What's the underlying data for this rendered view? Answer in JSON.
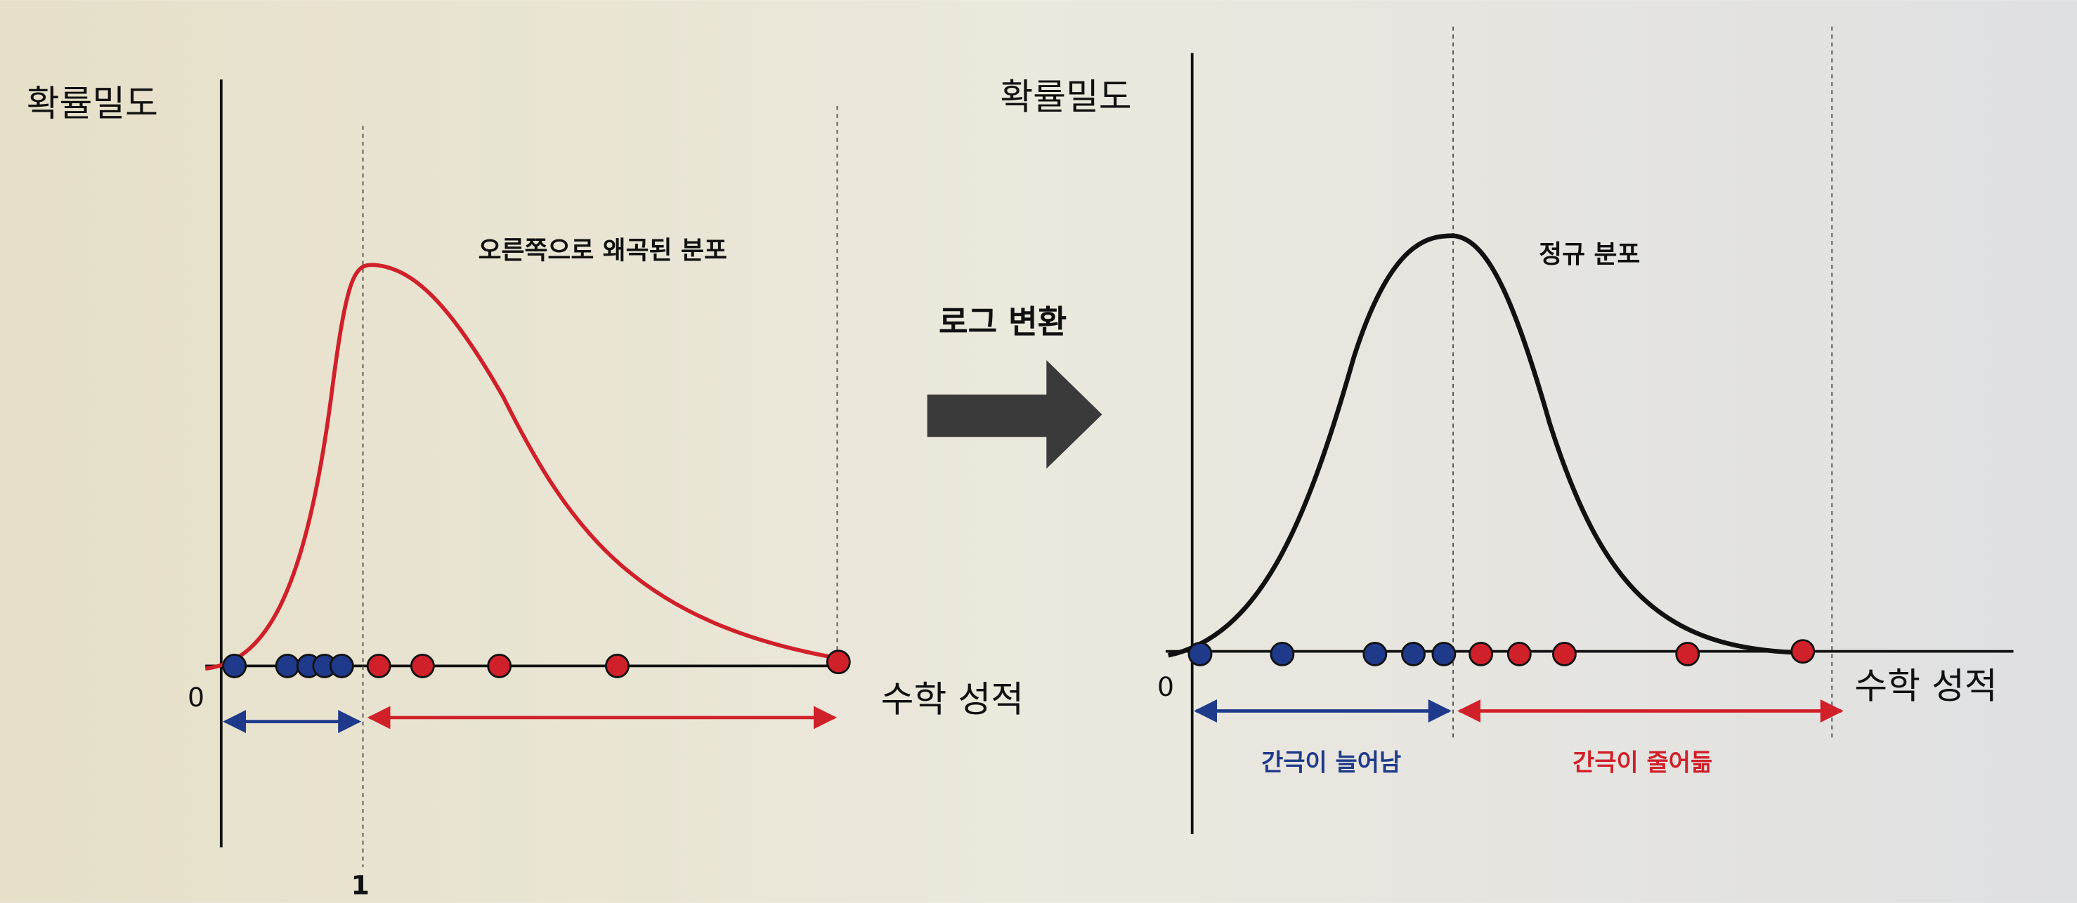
{
  "left": {
    "y_label": "확률밀도",
    "curve_label": "오른쪽으로 왜곡된 분포",
    "origin": "0",
    "tick": "1",
    "x_label": "수학 성적"
  },
  "middle": {
    "label": "로그 변환"
  },
  "right": {
    "y_label": "확률밀도",
    "curve_label": "정규 분포",
    "origin": "0",
    "x_label": "수학 성적",
    "gap_wider": "간극이 늘어남",
    "gap_narrower": "간극이 줄어듦"
  }
}
